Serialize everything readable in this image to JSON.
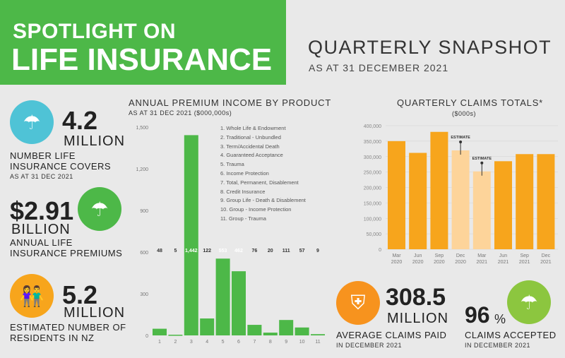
{
  "header": {
    "line1": "SPOTLIGHT ON",
    "line2": "LIFE INSURANCE",
    "snapshot": "QUARTERLY SNAPSHOT",
    "as_at": "AS AT 31 DECEMBER 2021"
  },
  "colors": {
    "green": "#4db848",
    "orange": "#f7a51c",
    "orange_light": "#fdd49a",
    "teal": "#4fc3d6",
    "brand_orange": "#f7931e",
    "lime": "#8cc63f"
  },
  "stats": [
    {
      "value": "4.2",
      "unit": "MILLION",
      "label": "NUMBER LIFE INSURANCE COVERS",
      "sub": "AS AT 31 DEC 2021",
      "icon": "family-umbrella-icon"
    },
    {
      "value": "$2.91",
      "unit": "BILLION",
      "label": "ANNUAL LIFE INSURANCE PREMIUMS",
      "icon": "umbrella-icon"
    },
    {
      "value": "5.2",
      "unit": "MILLION",
      "label": "ESTIMATED NUMBER OF RESIDENTS IN NZ",
      "icon": "people-icon"
    },
    {
      "value": "308.5",
      "unit": "MILLION",
      "label": "AVERAGE CLAIMS PAID",
      "sub": "IN DECEMBER 2021",
      "icon": "shield-plus-icon"
    },
    {
      "value": "96",
      "unit": "%",
      "label": "CLAIMS ACCEPTED",
      "sub": "IN DECEMBER 2021",
      "icon": "umbrella-people-icon"
    }
  ],
  "chart_data": [
    {
      "type": "bar",
      "title": "ANNUAL PREMIUM INCOME BY PRODUCT",
      "subtitle": "AS AT 31 DEC 2021 ($000,000s)",
      "categories": [
        "1",
        "2",
        "3",
        "4",
        "5",
        "6",
        "7",
        "8",
        "9",
        "10",
        "11"
      ],
      "values": [
        48,
        5,
        1442,
        122,
        553,
        462,
        76,
        20,
        111,
        57,
        9
      ],
      "value_labels": [
        "48",
        "5",
        "1,442",
        "122",
        "553",
        "462",
        "76",
        "20",
        "111",
        "57",
        "9"
      ],
      "yticks": [
        "0",
        "300",
        "600",
        "900",
        "1,200",
        "1,500"
      ],
      "ylim": [
        0,
        1500
      ],
      "legend": [
        "1. Whole Life & Endowment",
        "2. Traditional - Unbundled",
        "3. Term/Accidental Death",
        "4. Guaranteed Acceptance",
        "5. Trauma",
        "6. Income Protection",
        "7. Total, Permanent, Disablement",
        "8. Credit Insurance",
        "9. Group Life - Death & Disablement",
        "10. Group - Income Protection",
        "11. Group - Trauma"
      ]
    },
    {
      "type": "bar",
      "title": "QUARTERLY CLAIMS TOTALS*",
      "subtitle": "($000s)",
      "categories": [
        [
          "Mar",
          "2020"
        ],
        [
          "Jun",
          "2020"
        ],
        [
          "Sep",
          "2020"
        ],
        [
          "Dec",
          "2020"
        ],
        [
          "Mar",
          "2021"
        ],
        [
          "Jun",
          "2021"
        ],
        [
          "Sep",
          "2021"
        ],
        [
          "Dec",
          "2021"
        ]
      ],
      "values": [
        350000,
        312000,
        380000,
        320000,
        252000,
        285000,
        308000,
        308000
      ],
      "estimate": [
        false,
        false,
        false,
        true,
        true,
        false,
        false,
        false
      ],
      "estimate_label": "ESTIMATE",
      "yticks": [
        "0",
        "50,000",
        "100,000",
        "150,000",
        "200,000",
        "250,000",
        "300,000",
        "350,000",
        "400,000"
      ],
      "ylim": [
        0,
        400000
      ]
    }
  ]
}
